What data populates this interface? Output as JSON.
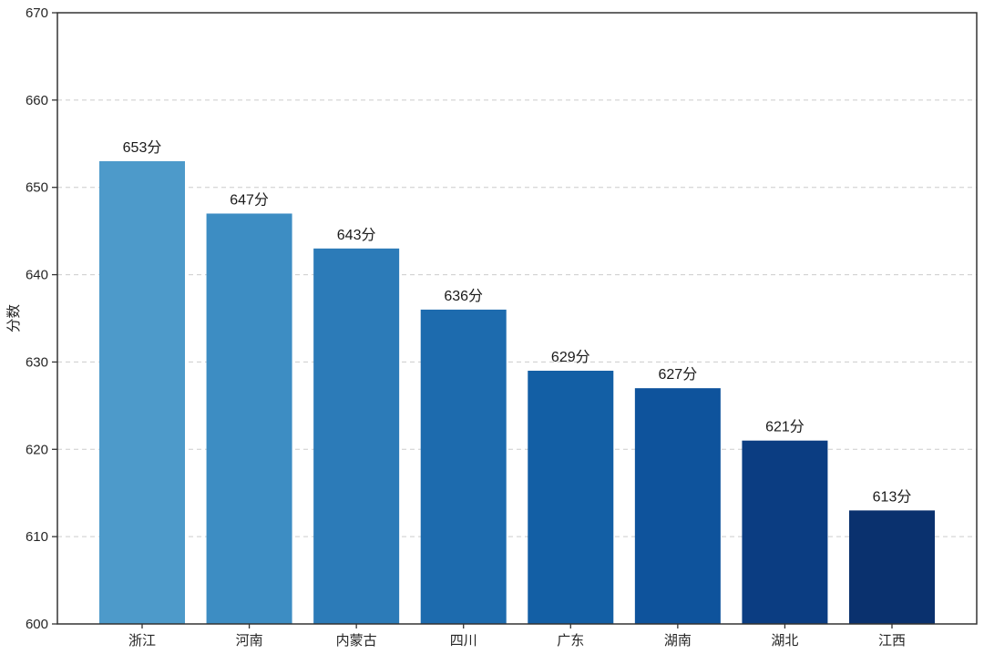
{
  "chart_data": {
    "type": "bar",
    "title": "",
    "categories": [
      "浙江",
      "河南",
      "内蒙古",
      "四川",
      "广东",
      "湖南",
      "湖北",
      "江西"
    ],
    "values": [
      653,
      647,
      643,
      636,
      629,
      627,
      621,
      613
    ],
    "bar_labels": [
      "653分",
      "647分",
      "643分",
      "636分",
      "629分",
      "627分",
      "621分",
      "613分"
    ],
    "xlabel": "",
    "ylabel": "分数",
    "ylim": [
      600,
      670
    ],
    "yticks": [
      600,
      610,
      620,
      630,
      640,
      650,
      660,
      670
    ],
    "grid": "horizontal-dashed",
    "legend": "none",
    "bar_colors": [
      "#4d9aca",
      "#3d8dc3",
      "#2c7bb8",
      "#1d6bae",
      "#135fa5",
      "#0e539c",
      "#0b3d82",
      "#0a316e"
    ],
    "colors": {
      "axis": "#333333",
      "grid": "#cccccc",
      "tick_label": "#262626",
      "value_label": "#1a1a1a",
      "background": "#ffffff"
    }
  }
}
